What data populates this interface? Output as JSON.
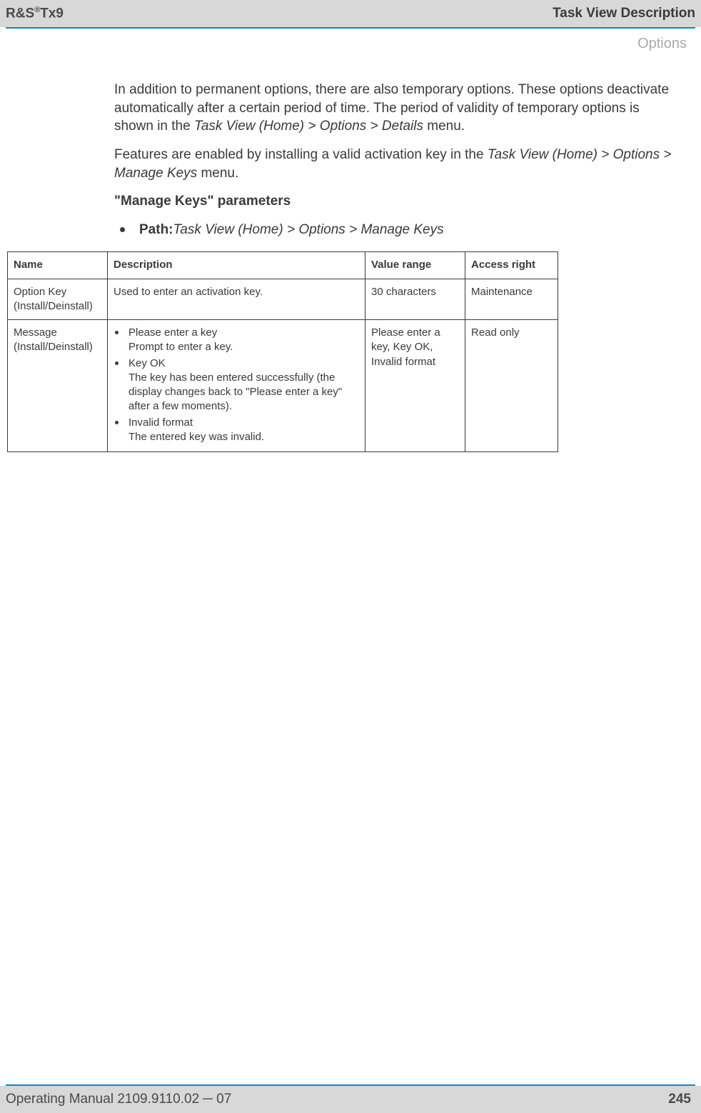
{
  "header": {
    "product_prefix": "R&S",
    "product_sup": "®",
    "product_suffix": "Tx9",
    "title_right": "Task View Description"
  },
  "subheader": "Options",
  "body": {
    "para1_a": "In addition to permanent options, there are also temporary options. These options deactivate automatically after a certain period of time. The period of validity of temporary options is shown in the ",
    "para1_italic": "Task View (Home) > Options > Details",
    "para1_b": " menu.",
    "para2_a": "Features are enabled by installing a valid activation key in the ",
    "para2_italic": "Task View (Home) > Options > Manage Keys",
    "para2_b": " menu.",
    "section_heading": "\"Manage Keys\" parameters",
    "path_label": "Path:",
    "path_value": "Task View (Home) > Options > Manage Keys"
  },
  "table": {
    "columns": [
      "Name",
      "Description",
      "Value range",
      "Access right"
    ],
    "col_widths": [
      "140px",
      "auto",
      "140px",
      "130px"
    ],
    "rows": [
      {
        "name": "Option Key (Install/Deinstall)",
        "description_plain": "Used to enter an activation key.",
        "value_range": "30 characters",
        "access_right": "Maintenance"
      },
      {
        "name": "Message (Install/Deinstall)",
        "description_list": [
          {
            "title": "Please enter a key",
            "sub": "Prompt to enter a key."
          },
          {
            "title": "Key OK",
            "sub": "The key has been entered successfully (the display changes back to \"Please enter a key\" after a few moments)."
          },
          {
            "title": "Invalid format",
            "sub": "The entered key was invalid."
          }
        ],
        "value_range": "Please enter a key, Key OK, Invalid format",
        "access_right": "Read only"
      }
    ]
  },
  "footer": {
    "left_a": "Operating Manual 2109.9110.02 ",
    "left_dash": "─",
    "left_b": " 07",
    "page_number": "245"
  },
  "colors": {
    "header_bg": "#d8d8d8",
    "rule": "#0a8acb",
    "subheader_text": "#a9a9a9",
    "body_text": "#3a3a3a",
    "table_border": "#3a3a3a"
  }
}
